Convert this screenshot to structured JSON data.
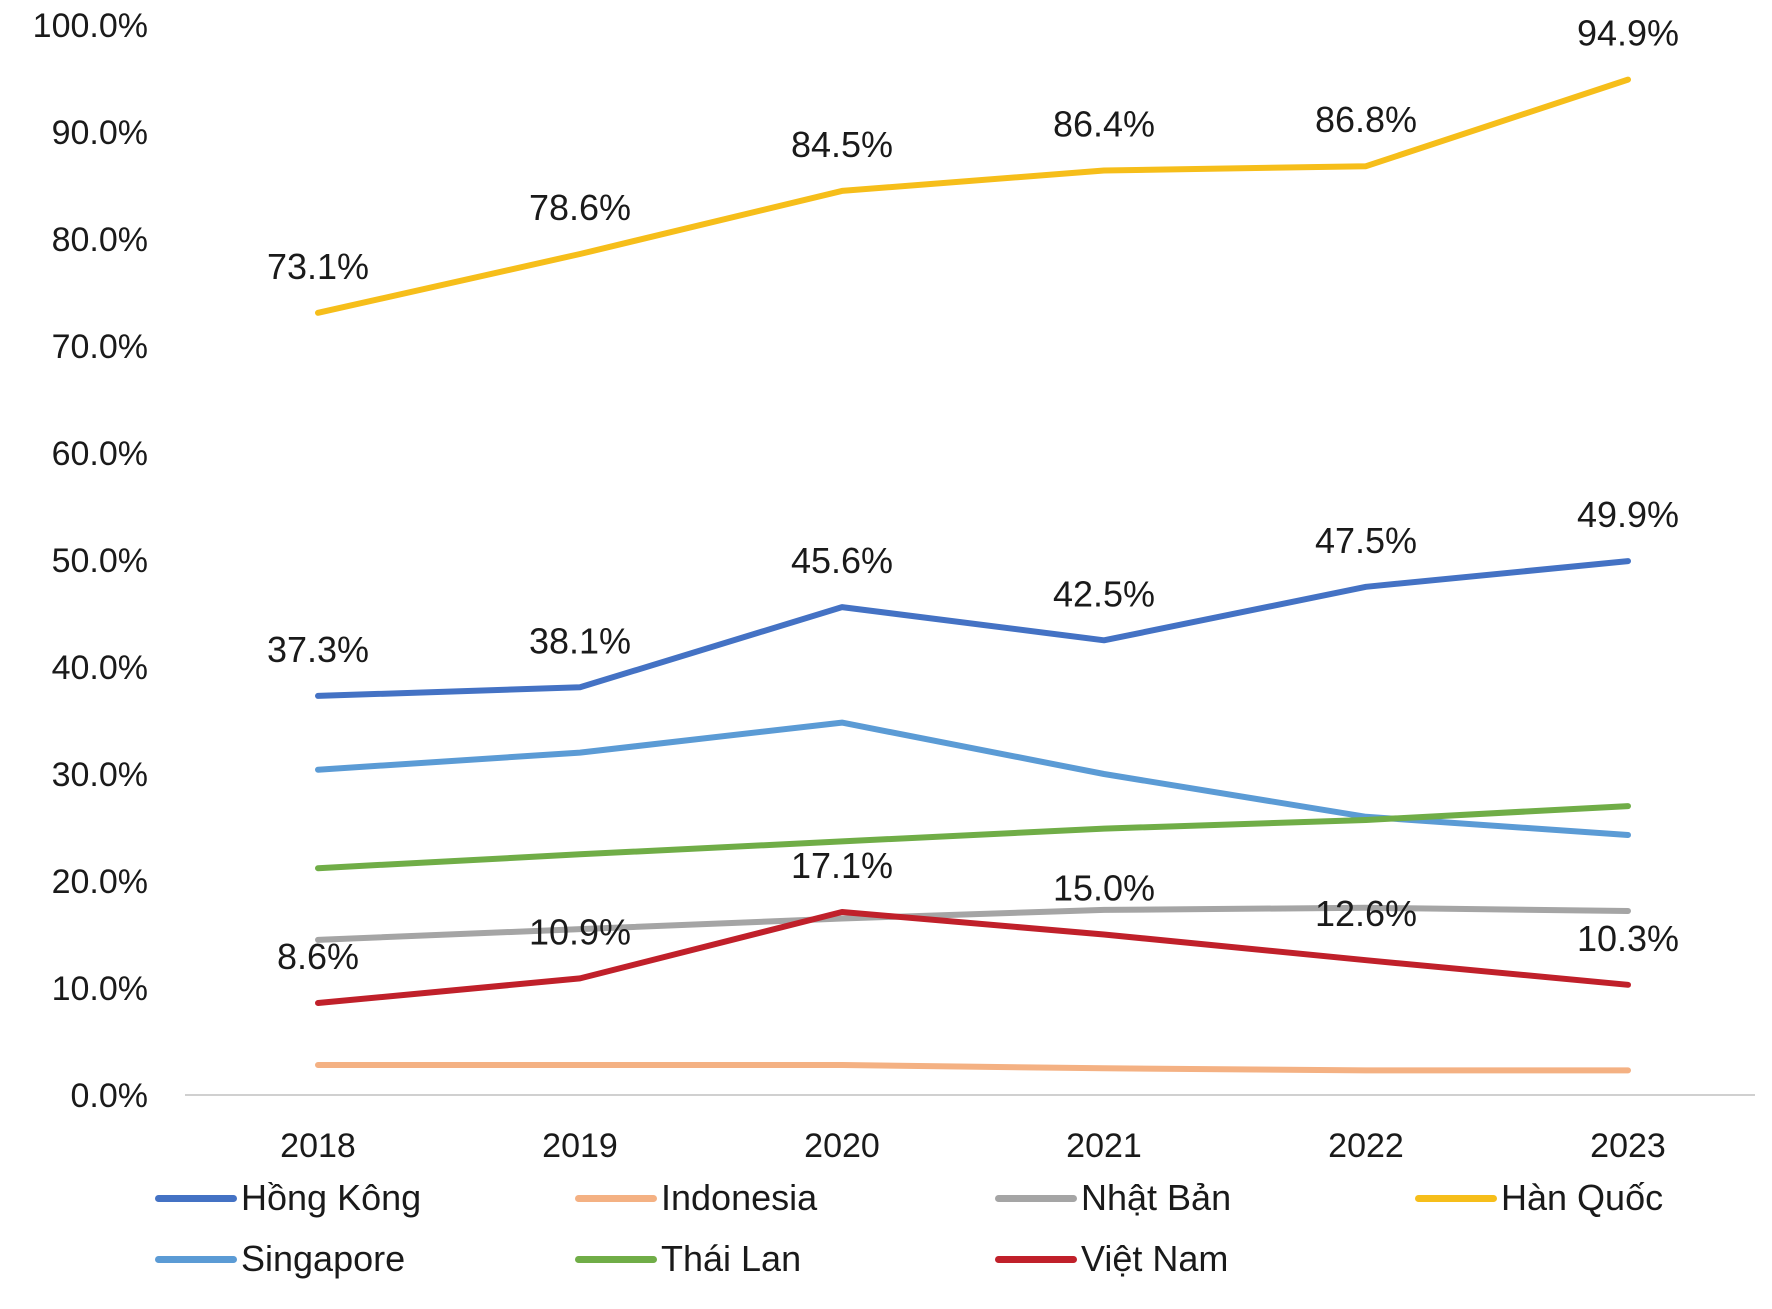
{
  "chart_data": {
    "type": "line",
    "categories": [
      "2018",
      "2019",
      "2020",
      "2021",
      "2022",
      "2023"
    ],
    "ylim": [
      0,
      100
    ],
    "yticks": [
      "0.0%",
      "10.0%",
      "20.0%",
      "30.0%",
      "40.0%",
      "50.0%",
      "60.0%",
      "70.0%",
      "80.0%",
      "90.0%",
      "100.0%"
    ],
    "grid": false,
    "legend_position": "bottom",
    "series": [
      {
        "name": "Hồng Kông",
        "color": "#4472C4",
        "values": [
          37.3,
          38.1,
          45.6,
          42.5,
          47.5,
          49.9
        ],
        "labels": [
          "37.3%",
          "38.1%",
          "45.6%",
          "42.5%",
          "47.5%",
          "49.9%"
        ]
      },
      {
        "name": "Indonesia",
        "color": "#F4B183",
        "values": [
          2.8,
          2.8,
          2.8,
          2.5,
          2.3,
          2.3
        ],
        "labels": []
      },
      {
        "name": "Nhật Bản",
        "color": "#A5A5A5",
        "values": [
          14.5,
          15.5,
          16.5,
          17.3,
          17.5,
          17.2
        ],
        "labels": []
      },
      {
        "name": "Hàn Quốc",
        "color": "#F6BE1A",
        "values": [
          73.1,
          78.6,
          84.5,
          86.4,
          86.8,
          94.9
        ],
        "labels": [
          "73.1%",
          "78.6%",
          "84.5%",
          "86.4%",
          "86.8%",
          "94.9%"
        ]
      },
      {
        "name": "Singapore",
        "color": "#5B9BD5",
        "values": [
          30.4,
          32.0,
          34.8,
          30.0,
          26.0,
          24.3
        ],
        "labels": []
      },
      {
        "name": "Thái Lan",
        "color": "#70AD47",
        "values": [
          21.2,
          22.5,
          23.7,
          24.9,
          25.7,
          27.0
        ],
        "labels": []
      },
      {
        "name": "Việt Nam",
        "color": "#C0202A",
        "values": [
          8.6,
          10.9,
          17.1,
          15.0,
          12.6,
          10.3
        ],
        "labels": [
          "8.6%",
          "10.9%",
          "17.1%",
          "15.0%",
          "12.6%",
          "10.3%"
        ]
      }
    ]
  }
}
